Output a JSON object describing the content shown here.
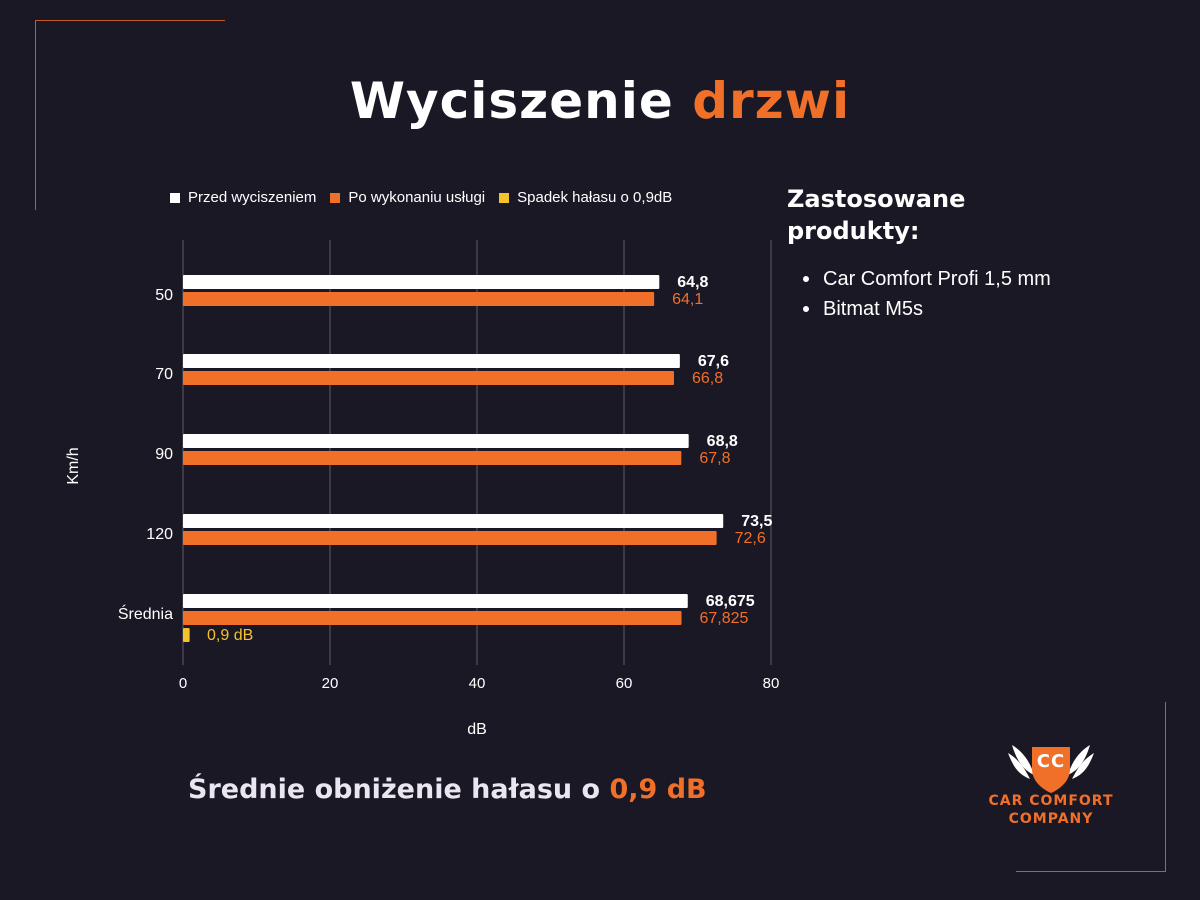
{
  "title": {
    "part1": "Wyciszenie",
    "part2": "drzwi"
  },
  "legend": [
    {
      "label": "Przed wyciszeniem",
      "color": "#ffffff"
    },
    {
      "label": "Po wykonaniu usługi",
      "color": "#f0702a"
    },
    {
      "label": "Spadek hałasu o 0,9dB",
      "color": "#f5c22b"
    }
  ],
  "chart_data": {
    "type": "bar",
    "orientation": "horizontal",
    "categories": [
      "50",
      "70",
      "90",
      "120",
      "Średnia"
    ],
    "series": [
      {
        "name": "Przed wyciszeniem",
        "values": [
          64.8,
          67.6,
          68.8,
          73.5,
          68.675
        ],
        "labels": [
          "64,8",
          "67,6",
          "68,8",
          "73,5",
          "68,675"
        ],
        "color": "#ffffff"
      },
      {
        "name": "Po wykonaniu usługi",
        "values": [
          64.1,
          66.8,
          67.8,
          72.6,
          67.825
        ],
        "labels": [
          "64,1",
          "66,8",
          "67,8",
          "72,6",
          "67,825"
        ],
        "color": "#f0702a"
      },
      {
        "name": "Spadek hałasu o 0,9dB",
        "values": [
          null,
          null,
          null,
          null,
          0.9
        ],
        "labels": [
          "",
          "",
          "",
          "",
          "0,9 dB"
        ],
        "color": "#f5c22b"
      }
    ],
    "xlabel": "dB",
    "ylabel": "Km/h",
    "xlim": [
      0,
      80
    ],
    "xticks": [
      0,
      20,
      40,
      60,
      80
    ],
    "grid": true,
    "legend_position": "top"
  },
  "side": {
    "title_line1": "Zastosowane",
    "title_line2": "produkty:",
    "items": [
      "Car Comfort Profi 1,5 mm",
      "Bitmat M5s"
    ]
  },
  "summary": {
    "text": "Średnie obniżenie hałasu o",
    "value": "0,9 dB"
  },
  "logo": {
    "initials": "CC",
    "line1": "CAR COMFORT",
    "line2": "COMPANY"
  }
}
